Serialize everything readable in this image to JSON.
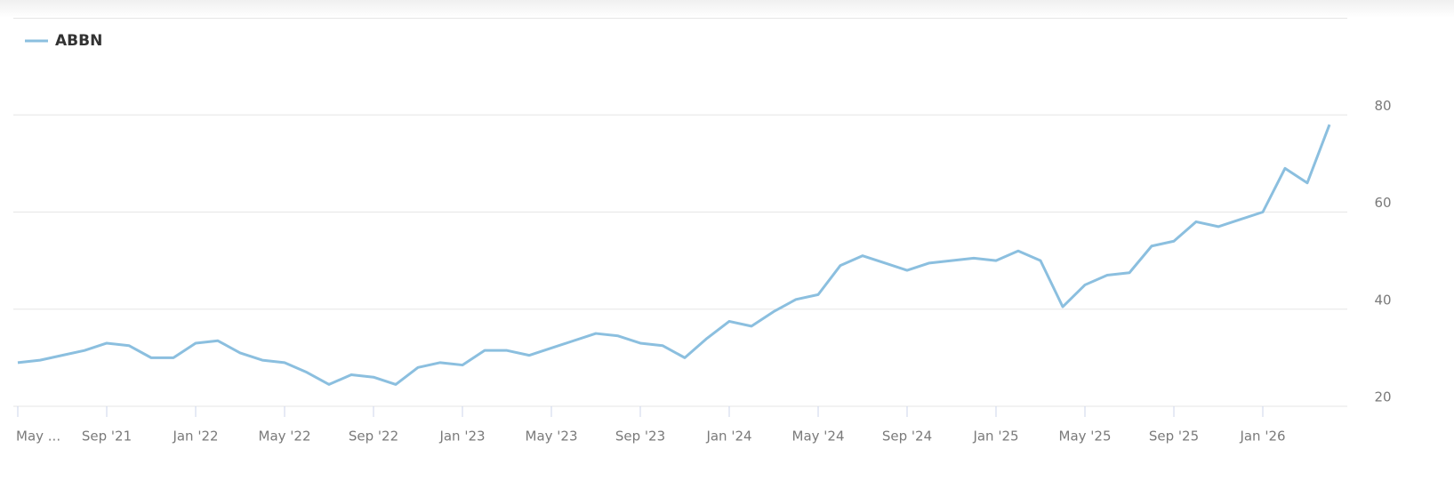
{
  "chart_data": {
    "type": "line",
    "x": [
      "2021-05",
      "2021-06",
      "2021-07",
      "2021-08",
      "2021-09",
      "2021-10",
      "2021-11",
      "2021-12",
      "2022-01",
      "2022-02",
      "2022-03",
      "2022-04",
      "2022-05",
      "2022-06",
      "2022-07",
      "2022-08",
      "2022-09",
      "2022-10",
      "2022-11",
      "2022-12",
      "2023-01",
      "2023-02",
      "2023-03",
      "2023-04",
      "2023-05",
      "2023-06",
      "2023-07",
      "2023-08",
      "2023-09",
      "2023-10",
      "2023-11",
      "2023-12",
      "2024-01",
      "2024-02",
      "2024-03",
      "2024-04",
      "2024-05",
      "2024-06",
      "2024-07",
      "2024-08",
      "2024-09",
      "2024-10",
      "2024-11",
      "2024-12",
      "2025-01",
      "2025-02",
      "2025-03",
      "2025-04",
      "2025-05",
      "2025-06",
      "2025-07",
      "2025-08",
      "2025-09",
      "2025-10",
      "2025-11",
      "2025-12",
      "2026-01",
      "2026-02",
      "2026-03",
      "2026-04"
    ],
    "series": [
      {
        "name": "ABBN",
        "color": "#8bbfdf",
        "values": [
          29,
          29.5,
          30.5,
          31.5,
          33,
          32.5,
          30,
          30,
          33,
          33.5,
          31,
          29.5,
          29,
          27,
          24.5,
          26.5,
          26,
          24.5,
          28,
          29,
          28.5,
          31.5,
          31.5,
          30.5,
          32,
          33.5,
          35,
          34.5,
          33,
          32.5,
          30,
          34,
          37.5,
          36.5,
          39.5,
          42,
          43,
          49,
          51,
          49.5,
          48,
          49.5,
          50,
          50.5,
          50,
          52,
          50,
          40.5,
          45,
          47,
          47.5,
          53,
          54,
          58,
          57,
          58.5,
          60,
          69,
          66,
          78
        ]
      }
    ],
    "xlim": [
      "2021-05",
      "2026-04"
    ],
    "xticks": [
      {
        "value": "2021-05",
        "label": "May ..."
      },
      {
        "value": "2021-09",
        "label": "Sep '21"
      },
      {
        "value": "2022-01",
        "label": "Jan '22"
      },
      {
        "value": "2022-05",
        "label": "May '22"
      },
      {
        "value": "2022-09",
        "label": "Sep '22"
      },
      {
        "value": "2023-01",
        "label": "Jan '23"
      },
      {
        "value": "2023-05",
        "label": "May '23"
      },
      {
        "value": "2023-09",
        "label": "Sep '23"
      },
      {
        "value": "2024-01",
        "label": "Jan '24"
      },
      {
        "value": "2024-05",
        "label": "May '24"
      },
      {
        "value": "2024-09",
        "label": "Sep '24"
      },
      {
        "value": "2025-01",
        "label": "Jan '25"
      },
      {
        "value": "2025-05",
        "label": "May '25"
      },
      {
        "value": "2025-09",
        "label": "Sep '25"
      },
      {
        "value": "2026-01",
        "label": "Jan '26"
      }
    ],
    "ylim": [
      20,
      100
    ],
    "yticks": [
      20,
      40,
      60,
      80
    ],
    "grid": true,
    "legend": "top-left"
  }
}
